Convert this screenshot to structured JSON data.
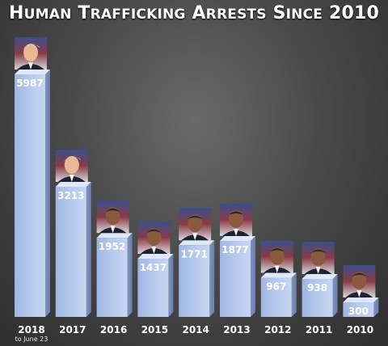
{
  "chart_data": {
    "type": "bar",
    "title": "Human Trafficking Arrests Since 2010",
    "categories": [
      "2018",
      "2017",
      "2016",
      "2015",
      "2014",
      "2013",
      "2012",
      "2011",
      "2010"
    ],
    "category_notes": [
      "to June 23",
      "",
      "",
      "",
      "",
      "",
      "",
      "",
      ""
    ],
    "values": [
      5987,
      3213,
      1952,
      1437,
      1771,
      1877,
      967,
      938,
      300
    ],
    "bar_labels": [
      "5987",
      "3213",
      "1952",
      "1437",
      "1771",
      "1877",
      "967",
      "938",
      "300"
    ],
    "portrait_icons": [
      "trump-portrait-icon",
      "trump-portrait-icon",
      "obama-portrait-icon",
      "obama-portrait-icon",
      "obama-portrait-icon",
      "obama-portrait-icon",
      "obama-portrait-icon",
      "obama-portrait-icon",
      "obama-portrait-icon"
    ],
    "bar_color": "#b4c8ec",
    "background_color": "#4a4a4a",
    "ylim": [
      0,
      5987
    ]
  }
}
